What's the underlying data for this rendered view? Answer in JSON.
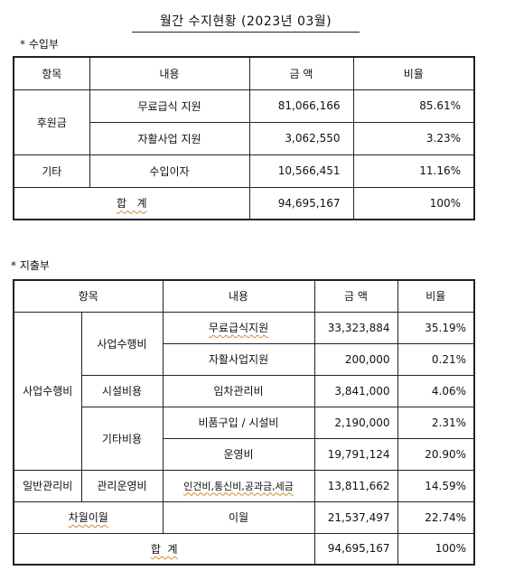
{
  "title": "월간 수지현황 (2023년 03월)",
  "income": {
    "section_label": "* 수입부",
    "headers": [
      "항목",
      "내용",
      "금 액",
      "비율"
    ],
    "group_label": "후원금",
    "rows": [
      {
        "content": "무료급식 지원",
        "amount": "81,066,166",
        "ratio": "85.61%"
      },
      {
        "content": "자활사업 지원",
        "amount": "3,062,550",
        "ratio": "3.23%"
      }
    ],
    "other": {
      "category": "기타",
      "content": "수입이자",
      "amount": "10,566,451",
      "ratio": "11.16%"
    },
    "total": {
      "label": "합   계",
      "amount": "94,695,167",
      "ratio": "100%"
    }
  },
  "expense": {
    "section_label": "* 지출부",
    "headers": [
      "항목",
      "내용",
      "금 액",
      "비율"
    ],
    "business": {
      "category": "사업수행비",
      "sub1": "사업수행비",
      "sub1_rows": [
        {
          "content": "무료급식지원",
          "amount": "33,323,884",
          "ratio": "35.19%"
        },
        {
          "content": "자활사업지원",
          "amount": "200,000",
          "ratio": "0.21%"
        }
      ],
      "sub2": "시설비용",
      "sub2_row": {
        "content": "임차관리비",
        "amount": "3,841,000",
        "ratio": "4.06%"
      },
      "sub3": "기타비용",
      "sub3_rows": [
        {
          "content": "비품구입 / 시설비",
          "amount": "2,190,000",
          "ratio": "2.31%"
        },
        {
          "content": "운영비",
          "amount": "19,791,124",
          "ratio": "20.90%"
        }
      ]
    },
    "general": {
      "category": "일반관리비",
      "sub": "관리운영비",
      "content": "인건비,통신비,공과금,세금",
      "amount": "13,811,662",
      "ratio": "14.59%"
    },
    "carryover": {
      "label": "차월이월",
      "content": "이월",
      "amount": "21,537,497",
      "ratio": "22.74%"
    },
    "total": {
      "label": "합  계",
      "amount": "94,695,167",
      "ratio": "100%"
    }
  }
}
